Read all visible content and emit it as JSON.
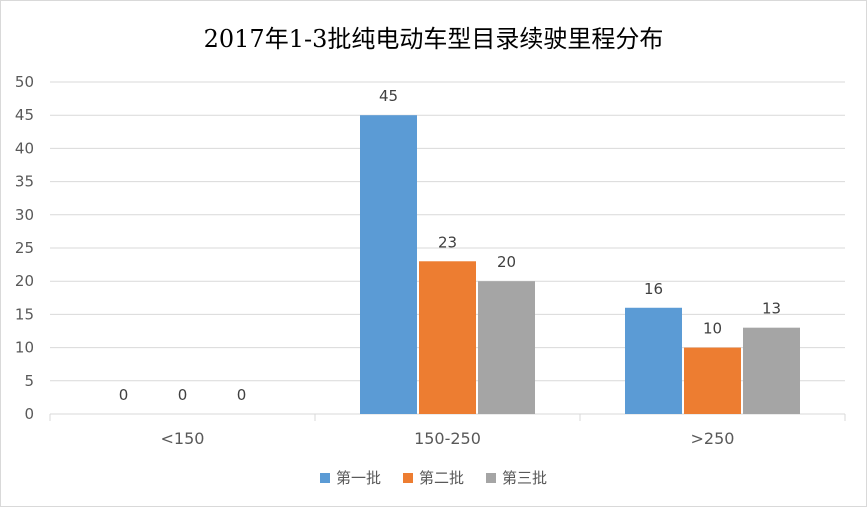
{
  "chart_data": {
    "type": "bar",
    "title": "2017年1-3批纯电动车型目录续驶里程分布",
    "categories": [
      "<150",
      "150-250",
      ">250"
    ],
    "series": [
      {
        "name": "第一批",
        "values": [
          0,
          45,
          16
        ],
        "color": "#5b9bd5"
      },
      {
        "name": "第二批",
        "values": [
          0,
          23,
          10
        ],
        "color": "#ed7d31"
      },
      {
        "name": "第三批",
        "values": [
          0,
          20,
          13
        ],
        "color": "#a5a5a5"
      }
    ],
    "ylim": [
      0,
      50
    ],
    "yticks": [
      0,
      5,
      10,
      15,
      20,
      25,
      30,
      35,
      40,
      45,
      50
    ],
    "grid": true,
    "legend_position": "bottom"
  }
}
